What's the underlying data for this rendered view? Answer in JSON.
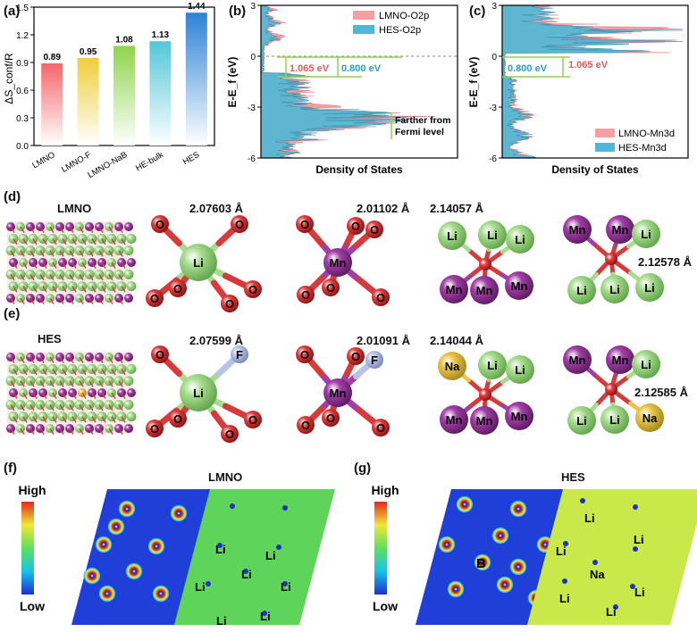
{
  "panels": {
    "a": "(a)",
    "b": "(b)",
    "c": "(c)",
    "d": "(d)",
    "e": "(e)",
    "f": "(f)",
    "g": "(g)"
  },
  "chart_data": [
    {
      "type": "bar",
      "panel": "a",
      "categories": [
        "LMNO",
        "LMNO-F",
        "LMNO-NaB",
        "HE-bulk",
        "HES"
      ],
      "values": [
        0.89,
        0.95,
        1.08,
        1.13,
        1.44
      ],
      "value_labels": [
        "0.89",
        "0.95",
        "1.08",
        "1.13",
        "1.44"
      ],
      "ylabel": "ΔS_conf/R",
      "ylim": [
        0.0,
        1.5
      ],
      "yticks": [
        "0.0",
        "0.3",
        "0.6",
        "0.9",
        "1.2",
        "1.5"
      ],
      "colors": [
        "#f4666a",
        "#f0ce3a",
        "#8fd44b",
        "#52c7d8",
        "#2d82d6"
      ]
    },
    {
      "type": "area",
      "panel": "b",
      "xlabel": "Density of States",
      "ylabel": "E-E_f (eV)",
      "ylim": [
        -6,
        3
      ],
      "yticks": [
        "3",
        "0",
        "-3",
        "-6"
      ],
      "legend": [
        "LMNO-O2p",
        "HES-O2p"
      ],
      "legend_position": "top-right",
      "annotations": [
        "1.065 eV",
        "0.800 eV",
        "Farther from",
        "Fermi level"
      ]
    },
    {
      "type": "area",
      "panel": "c",
      "xlabel": "Density of States",
      "ylabel": "E-E_f (eV)",
      "ylim": [
        -6,
        3
      ],
      "yticks": [
        "3",
        "0",
        "-3",
        "-6"
      ],
      "legend": [
        "LMNO-Mn3d",
        "HES-Mn3d"
      ],
      "legend_position": "bottom-right",
      "annotations": [
        "0.800 eV",
        "1.065 eV"
      ]
    }
  ],
  "colors": {
    "lmno": "#f4a0a3",
    "hes": "#4fb8d6",
    "marker": "#8fd44b"
  },
  "struct_d": {
    "name": "LMNO",
    "b1": "2.07603 Å",
    "b2": "2.01102 Å",
    "b3": "2.14057 Å",
    "b4": "2.12578 Å",
    "li_center": "Li",
    "mn_center": "Mn",
    "cluster3": [
      "Li",
      "Li",
      "Li",
      "Mn",
      "Mn",
      "Mn"
    ],
    "cluster4": [
      "Mn",
      "Mn",
      "Li",
      "Li",
      "Li",
      "Li"
    ],
    "o": "O"
  },
  "struct_e": {
    "name": "HES",
    "b1": "2.07599 Å",
    "b2": "2.01091 Å",
    "b3": "2.14044 Å",
    "b4": "2.12585 Å",
    "li_center": "Li",
    "mn_center": "Mn",
    "f": "F",
    "cluster3": [
      "Na",
      "Li",
      "Li",
      "Mn",
      "Mn",
      "Mn"
    ],
    "cluster4": [
      "Mn",
      "Mn",
      "Li",
      "Li",
      "Li",
      "Na"
    ],
    "o": "O"
  },
  "map_f": {
    "title": "LMNO",
    "high": "High",
    "low": "Low",
    "labels": [
      "Li",
      "Li",
      "Li",
      "Li",
      "Li",
      "Li",
      "Li"
    ]
  },
  "map_g": {
    "title": "HES",
    "high": "High",
    "low": "Low",
    "b": "B",
    "na": "Na",
    "labels": [
      "Li",
      "Li",
      "Li",
      "Li",
      "Li",
      "Li"
    ]
  }
}
